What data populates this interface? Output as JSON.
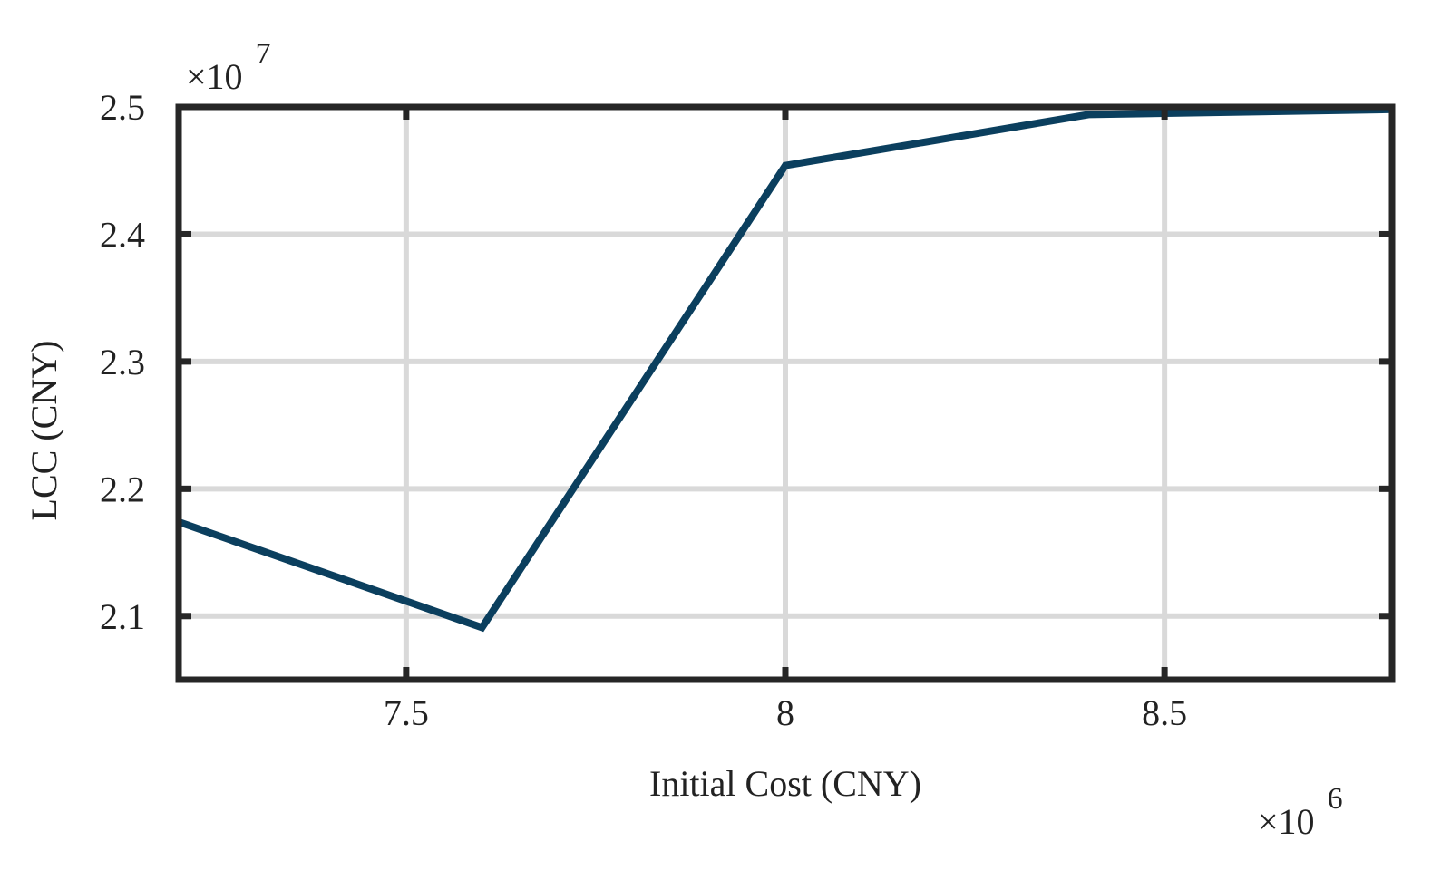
{
  "chart_data": {
    "type": "line",
    "xlabel": "Initial Cost (CNY)",
    "ylabel": "LCC (CNY)",
    "x_multiplier": {
      "base": "×10",
      "exponent": "6"
    },
    "y_multiplier": {
      "base": "×10",
      "exponent": "7"
    },
    "x": [
      7.2,
      7.6,
      8.0,
      8.4,
      8.8
    ],
    "series": [
      {
        "color": "#0b3f5e",
        "values": [
          2.174,
          2.091,
          2.454,
          2.494,
          2.498
        ]
      }
    ],
    "xlim": [
      7.2,
      8.8
    ],
    "xticks": [
      7.5,
      8,
      8.5
    ],
    "ylim": [
      2.05,
      2.5
    ],
    "yticks": [
      2.1,
      2.2,
      2.3,
      2.4,
      2.5
    ],
    "grid": true
  }
}
